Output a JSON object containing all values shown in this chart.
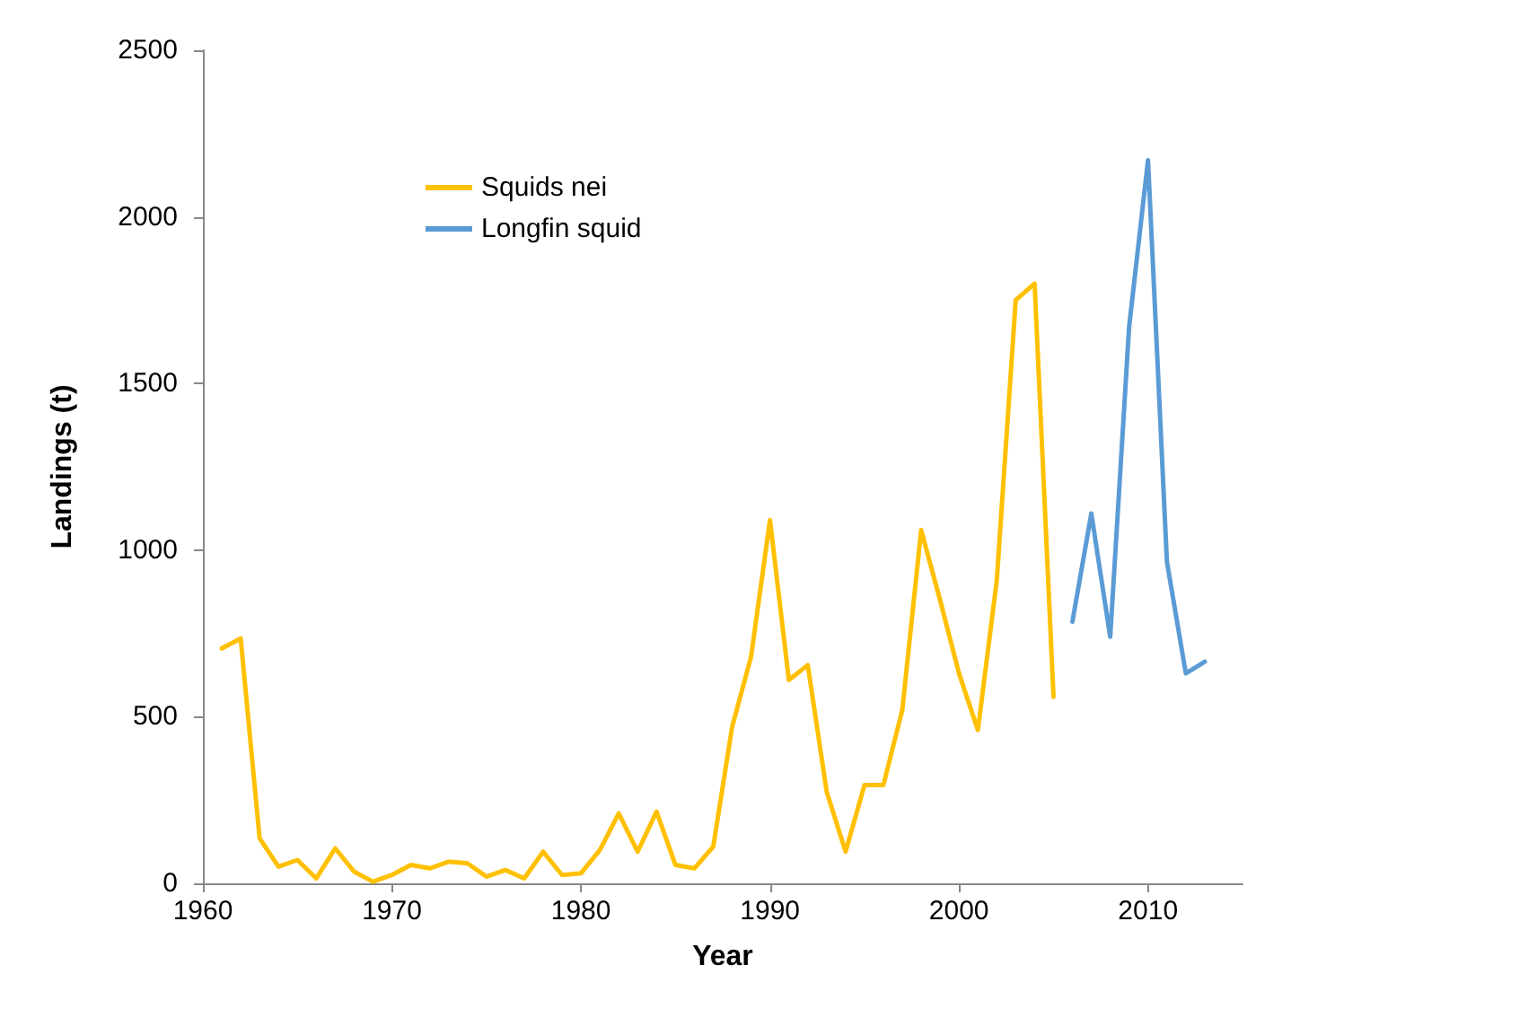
{
  "chart_data": {
    "type": "line",
    "xlabel": "Year",
    "ylabel": "Landings (t)",
    "xlim": [
      1960,
      2015
    ],
    "xticks": [
      1960,
      1970,
      1980,
      1990,
      2000,
      2010
    ],
    "ylim": [
      0,
      2500
    ],
    "yticks": [
      0,
      500,
      1000,
      1500,
      2000,
      2500
    ],
    "grid": false,
    "legend": "top left",
    "marker": "none",
    "line_style": "solid",
    "series": [
      {
        "name": "Squids nei",
        "color": "#ffc000",
        "x": [
          1961,
          1962,
          1963,
          1964,
          1965,
          1966,
          1967,
          1968,
          1969,
          1970,
          1971,
          1972,
          1973,
          1974,
          1975,
          1976,
          1977,
          1978,
          1979,
          1980,
          1981,
          1982,
          1983,
          1984,
          1985,
          1986,
          1987,
          1988,
          1989,
          1990,
          1991,
          1992,
          1993,
          1994,
          1995,
          1996,
          1997,
          1998,
          1999,
          2000,
          2001,
          2002,
          2003,
          2004,
          2005
        ],
        "values": [
          705,
          735,
          135,
          50,
          70,
          15,
          105,
          35,
          5,
          25,
          55,
          45,
          65,
          60,
          20,
          40,
          15,
          95,
          25,
          30,
          100,
          210,
          95,
          215,
          55,
          45,
          110,
          470,
          680,
          1090,
          610,
          655,
          275,
          95,
          295,
          295,
          520,
          1060,
          850,
          630,
          460,
          910,
          1750,
          1800,
          560
        ]
      },
      {
        "name": "Longfin squid",
        "color": "#5b9bd5",
        "x": [
          2006,
          2007,
          2008,
          2009,
          2010,
          2011,
          2012,
          2013
        ],
        "values": [
          785,
          1110,
          740,
          1670,
          2170,
          965,
          630,
          665
        ]
      }
    ]
  }
}
